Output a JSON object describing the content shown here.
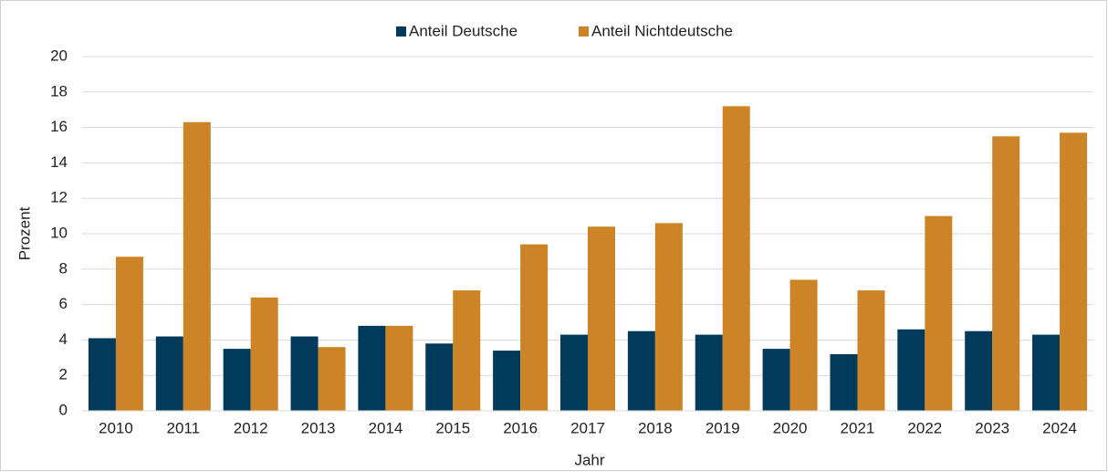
{
  "chart_data": {
    "type": "bar",
    "categories": [
      "2010",
      "2011",
      "2012",
      "2013",
      "2014",
      "2015",
      "2016",
      "2017",
      "2018",
      "2019",
      "2020",
      "2021",
      "2022",
      "2023",
      "2024"
    ],
    "series": [
      {
        "name": "Anteil Deutsche",
        "color": "#013a5a",
        "values": [
          4.1,
          4.2,
          3.5,
          4.2,
          4.8,
          3.8,
          3.4,
          4.3,
          4.5,
          4.3,
          3.5,
          3.2,
          4.6,
          4.5,
          4.3
        ]
      },
      {
        "name": "Anteil Nichtdeutsche",
        "color": "#cc8426",
        "values": [
          8.7,
          16.3,
          6.4,
          3.6,
          4.8,
          6.8,
          9.4,
          10.4,
          10.6,
          17.2,
          7.4,
          6.8,
          11.0,
          15.5,
          15.7
        ]
      }
    ],
    "x_label": "Jahr",
    "y_label": "Prozent",
    "ylim": [
      0,
      20
    ],
    "yticks": [
      0,
      2,
      4,
      6,
      8,
      10,
      12,
      14,
      16,
      18,
      20
    ],
    "grid": true,
    "legend": "top"
  }
}
